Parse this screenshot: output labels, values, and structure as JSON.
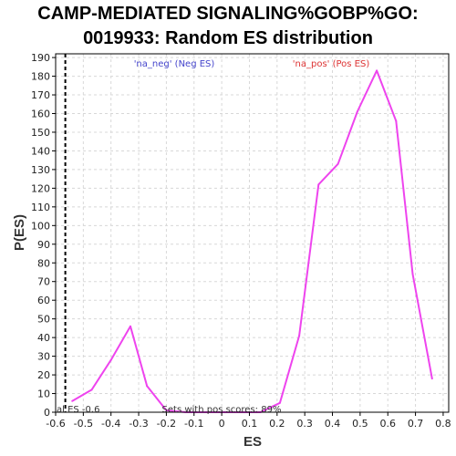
{
  "chart_data": {
    "type": "line",
    "title_lines": [
      "CAMP-MEDIATED SIGNALING%GOBP%GO:",
      "0019933: Random ES distribution"
    ],
    "xlabel": "ES",
    "ylabel": "P(ES)",
    "xlim": [
      -0.6,
      0.82
    ],
    "ylim": [
      0,
      192
    ],
    "x_ticks": [
      "-0.6",
      "-0.5",
      "-0.4",
      "-0.3",
      "-0.2",
      "-0.1",
      "0",
      "0.1",
      "0.2",
      "0.3",
      "0.4",
      "0.5",
      "0.6",
      "0.7",
      "0.8"
    ],
    "y_ticks": [
      "0",
      "10",
      "20",
      "30",
      "40",
      "50",
      "60",
      "70",
      "80",
      "90",
      "100",
      "110",
      "120",
      "130",
      "140",
      "150",
      "160",
      "170",
      "180",
      "190"
    ],
    "grid": true,
    "series": [
      {
        "color": "#ee44ee",
        "x": [
          -0.54,
          -0.47,
          -0.4,
          -0.33,
          -0.27,
          -0.2,
          -0.13,
          -0.06,
          0.0,
          0.07,
          0.14,
          0.21,
          0.28,
          0.35,
          0.42,
          0.49,
          0.56,
          0.63,
          0.69,
          0.76
        ],
        "y": [
          6,
          12,
          28,
          46,
          14,
          1,
          0,
          0,
          0,
          0,
          0,
          5,
          41,
          122,
          133,
          161,
          183,
          156,
          74,
          18
        ]
      }
    ],
    "vline": {
      "x": -0.565,
      "style": "dashed",
      "color": "#000000"
    },
    "annotations": {
      "neg": {
        "text": "'na_neg' (Neg ES)",
        "color": "#4444cc"
      },
      "pos": {
        "text": "'na_pos' (Pos ES)",
        "color": "#dd3333"
      },
      "real_es": {
        "text": "al ES -0.6",
        "color": "#333333"
      },
      "sets_pos": {
        "text": "Sets with pos scores: 89%",
        "color": "#333333"
      }
    }
  }
}
